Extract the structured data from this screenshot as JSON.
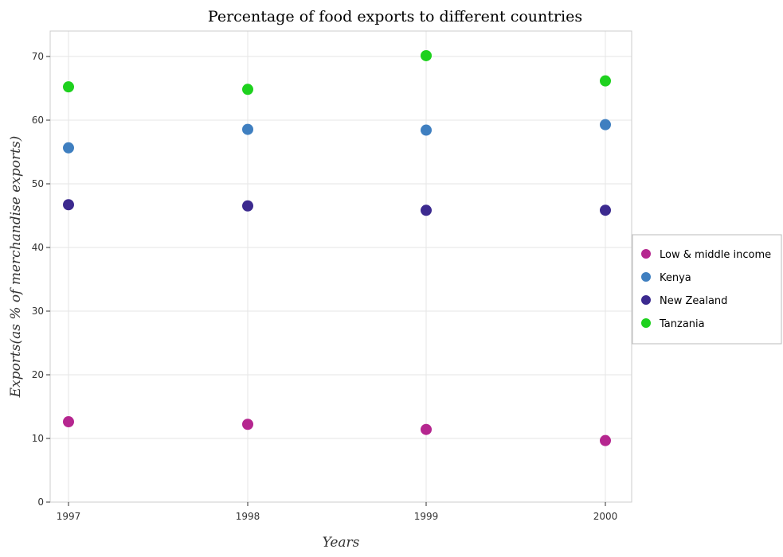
{
  "chart_data": {
    "type": "scatter",
    "title": "Percentage of food exports to different countries",
    "xlabel": "Years",
    "ylabel": "Exports(as % of merchandise exports)",
    "x": [
      "1997",
      "1998",
      "1999",
      "2000"
    ],
    "ylim": [
      0,
      74
    ],
    "yticks": [
      0,
      10,
      20,
      30,
      40,
      50,
      60,
      70
    ],
    "grid": true,
    "legend_position": "right",
    "series": [
      {
        "name": "Low & middle income",
        "color": "#b5268f",
        "values": [
          12.62,
          12.22,
          11.41,
          9.67
        ]
      },
      {
        "name": "Kenya",
        "color": "#3f7fc0",
        "values": [
          55.65,
          58.55,
          58.43,
          59.29
        ]
      },
      {
        "name": "New Zealand",
        "color": "#3c2a8f",
        "values": [
          46.72,
          46.53,
          45.84,
          45.85
        ]
      },
      {
        "name": "Tanzania",
        "color": "#1ed11e",
        "values": [
          65.23,
          64.84,
          70.13,
          66.17
        ]
      }
    ]
  }
}
